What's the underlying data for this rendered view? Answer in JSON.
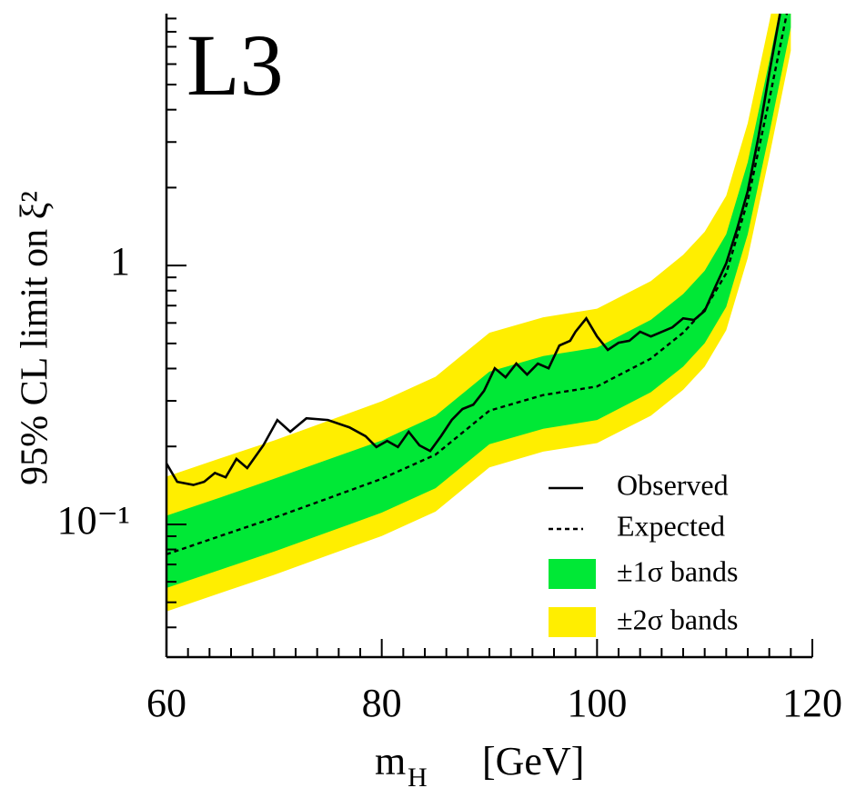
{
  "chart_data": {
    "type": "line",
    "annotation": "L3",
    "ylabel": "95% CL limit on ξ²",
    "xlabel": {
      "symbol": "m",
      "subscript": "H",
      "unit": "[GeV]"
    },
    "xlim": [
      60,
      120
    ],
    "xticks": [
      60,
      80,
      100,
      120
    ],
    "xminorticks": [
      62,
      64,
      66,
      68,
      70,
      72,
      74,
      76,
      78,
      82,
      84,
      86,
      88,
      90,
      92,
      94,
      96,
      98,
      102,
      104,
      106,
      108,
      110,
      112,
      114,
      116,
      118
    ],
    "ylim": [
      0.0307,
      9.4
    ],
    "log_y": true,
    "yticks": [
      {
        "value": 0.1,
        "label": "10⁻¹"
      },
      1
    ],
    "yminorticks": [
      0.04,
      0.05,
      0.06,
      0.07,
      0.08,
      0.09,
      0.2,
      0.3,
      0.4,
      0.5,
      0.6,
      0.7,
      0.8,
      0.9,
      2,
      3,
      4,
      5,
      6,
      7,
      8,
      9
    ],
    "legend": "lower right",
    "x": [
      60,
      65,
      70,
      75,
      80,
      85,
      90,
      95,
      100,
      105,
      108,
      110,
      112,
      114,
      116,
      118
    ],
    "bands": [
      {
        "name": "±2σ bands",
        "color": "#ffee00",
        "upper": [
          0.153,
          0.18,
          0.211,
          0.251,
          0.299,
          0.372,
          0.55,
          0.631,
          0.681,
          0.871,
          1.1,
          1.35,
          1.86,
          3.55,
          8.71,
          22.4
        ],
        "lower": [
          0.0461,
          0.0543,
          0.0638,
          0.0759,
          0.0902,
          0.112,
          0.166,
          0.191,
          0.206,
          0.263,
          0.331,
          0.407,
          0.562,
          1.07,
          2.63,
          6.76
        ]
      },
      {
        "name": "±1σ bands",
        "color": "#00e836",
        "upper": [
          0.108,
          0.127,
          0.15,
          0.178,
          0.211,
          0.263,
          0.389,
          0.447,
          0.482,
          0.617,
          0.776,
          0.955,
          1.32,
          2.51,
          6.17,
          15.8
        ],
        "lower": [
          0.0568,
          0.0668,
          0.0785,
          0.0933,
          0.111,
          0.138,
          0.204,
          0.234,
          0.253,
          0.324,
          0.407,
          0.501,
          0.692,
          1.32,
          3.24,
          8.32
        ]
      }
    ],
    "series": [
      {
        "name": "Observed",
        "color": "#000000",
        "style": "solid",
        "x": [
          60,
          61,
          62.5,
          63.5,
          64.5,
          65.5,
          66.5,
          67.5,
          69,
          70.3,
          71.5,
          73,
          75,
          77,
          78.5,
          79.5,
          80.5,
          81.5,
          82.5,
          83.5,
          84.5,
          85.5,
          86.5,
          87.5,
          88.5,
          89.5,
          90.5,
          91.5,
          92.5,
          93.5,
          94.5,
          95.5,
          96.5,
          97.5,
          98,
          99,
          100,
          101,
          102,
          103,
          104,
          105,
          107,
          108,
          109,
          110,
          111,
          112,
          113,
          114,
          115,
          116,
          117
        ],
        "values": [
          0.172,
          0.146,
          0.142,
          0.146,
          0.158,
          0.152,
          0.179,
          0.165,
          0.202,
          0.253,
          0.228,
          0.257,
          0.253,
          0.237,
          0.219,
          0.199,
          0.21,
          0.199,
          0.228,
          0.202,
          0.192,
          0.219,
          0.253,
          0.279,
          0.29,
          0.328,
          0.401,
          0.37,
          0.418,
          0.379,
          0.418,
          0.401,
          0.491,
          0.512,
          0.555,
          0.625,
          0.532,
          0.472,
          0.503,
          0.512,
          0.555,
          0.532,
          0.577,
          0.625,
          0.616,
          0.668,
          0.83,
          1.02,
          1.38,
          1.94,
          3.15,
          5.54,
          9.4
        ]
      },
      {
        "name": "Expected",
        "color": "#000000",
        "style": "dotted",
        "x": [
          60,
          65,
          70,
          75,
          80,
          85,
          90,
          95,
          100,
          105,
          108,
          110,
          112,
          114,
          116,
          118
        ],
        "values": [
          0.0766,
          0.0902,
          0.106,
          0.126,
          0.15,
          0.186,
          0.275,
          0.316,
          0.341,
          0.437,
          0.55,
          0.676,
          0.933,
          1.78,
          4.37,
          11.2
        ]
      }
    ]
  }
}
